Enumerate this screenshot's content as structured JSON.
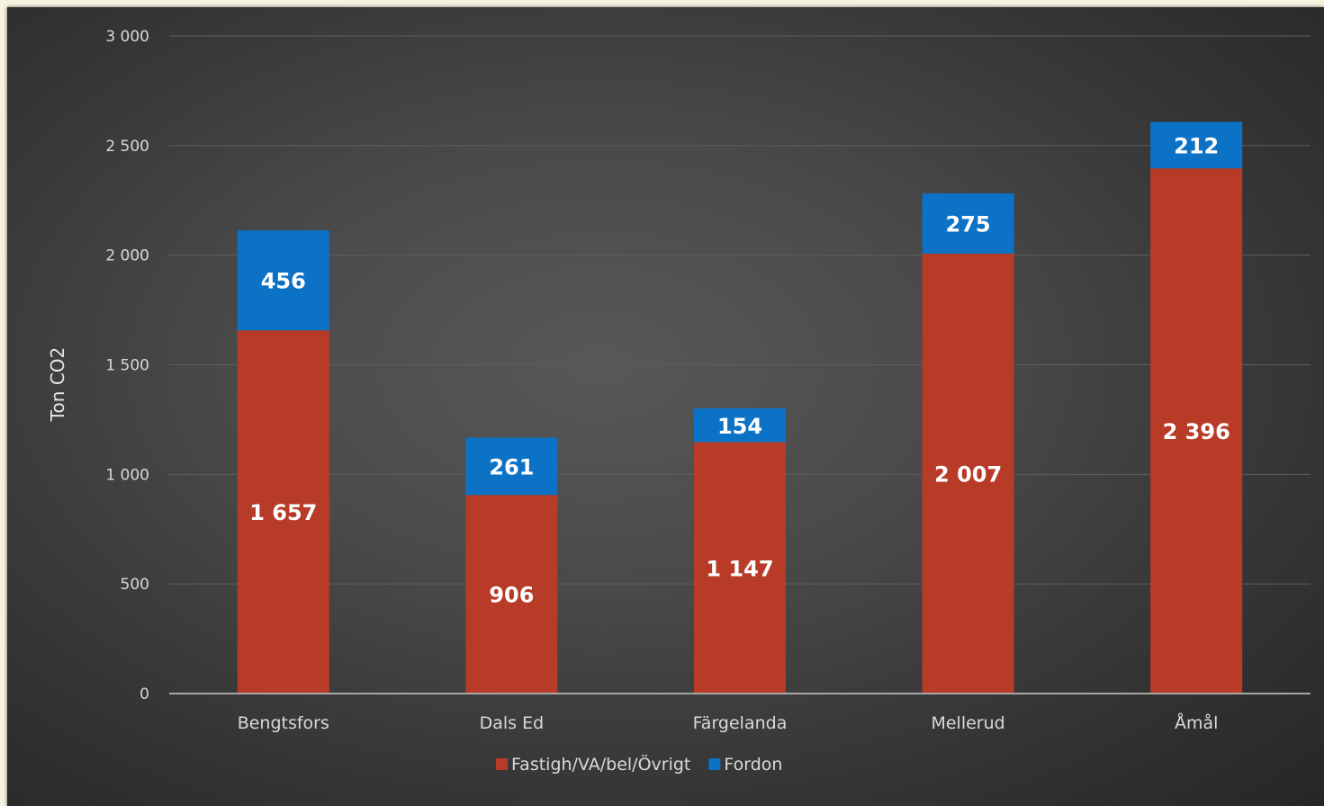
{
  "chart_data": {
    "type": "bar",
    "stacked": true,
    "categories": [
      "Bengtsfors",
      "Dals Ed",
      "Färgelanda",
      "Mellerud",
      "Åmål"
    ],
    "series": [
      {
        "name": "Fastigh/VA/bel/Övrigt",
        "color": "#b83b27",
        "values": [
          1657,
          906,
          1147,
          2007,
          2396
        ],
        "labels": [
          "1 657",
          "906",
          "1 147",
          "2 007",
          "2 396"
        ]
      },
      {
        "name": "Fordon",
        "color": "#0b72c6",
        "values": [
          456,
          261,
          154,
          275,
          212
        ],
        "labels": [
          "456",
          "261",
          "154",
          "275",
          "212"
        ]
      }
    ],
    "ylabel": "Ton CO2",
    "xlabel": "",
    "ylim": [
      0,
      3000
    ],
    "yticks": [
      0,
      500,
      1000,
      1500,
      2000,
      2500,
      3000
    ],
    "ytick_labels": [
      "0",
      "500",
      "1 000",
      "1 500",
      "2 000",
      "2 500",
      "3 000"
    ],
    "grid": true,
    "legend_position": "bottom",
    "background": "dark"
  }
}
